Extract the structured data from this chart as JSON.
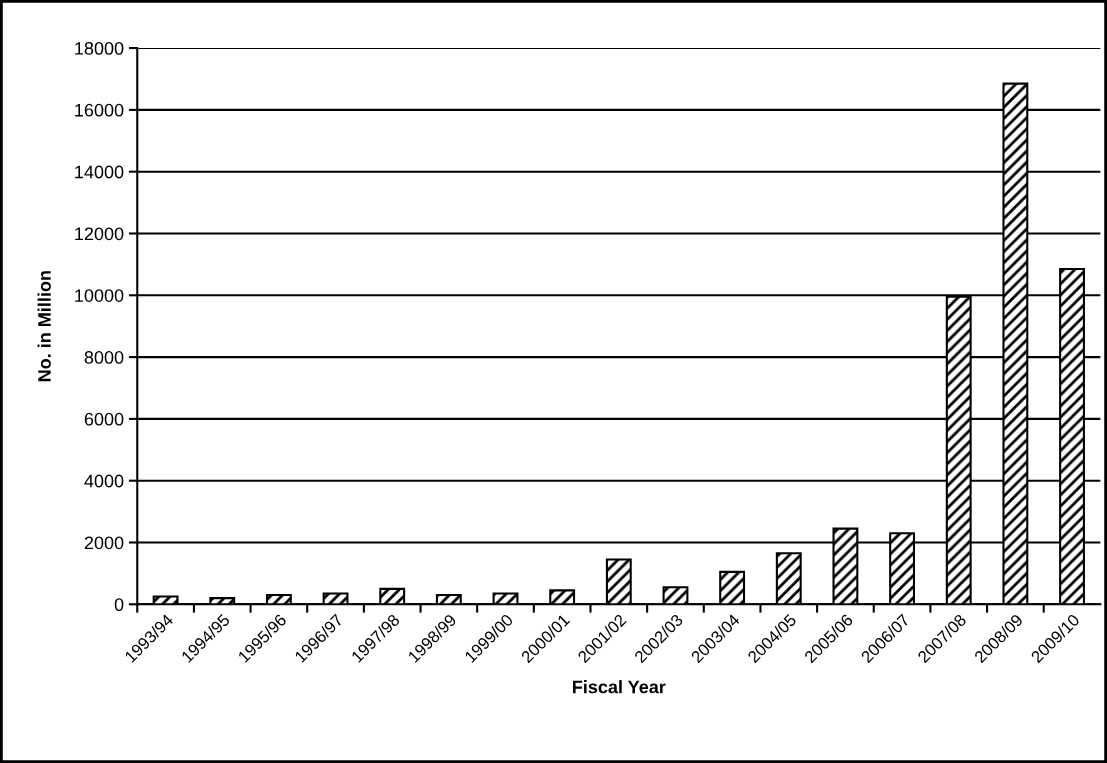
{
  "chart_data": {
    "type": "bar",
    "xlabel": "Fiscal Year",
    "ylabel": "No. in Million",
    "categories": [
      "1993/94",
      "1994/95",
      "1995/96",
      "1996/97",
      "1997/98",
      "1998/99",
      "1999/00",
      "2000/01",
      "2001/02",
      "2002/03",
      "2003/04",
      "2004/05",
      "2005/06",
      "2006/07",
      "2007/08",
      "2008/09",
      "2009/10"
    ],
    "values": [
      250,
      200,
      300,
      350,
      500,
      300,
      350,
      450,
      1450,
      550,
      1050,
      1650,
      2450,
      2300,
      9950,
      16850,
      10850
    ],
    "color": "#000000",
    "ylim": [
      0,
      18000
    ],
    "yticks": [
      0,
      2000,
      4000,
      6000,
      8000,
      10000,
      12000,
      14000,
      16000,
      18000
    ],
    "grid": "y",
    "legend": false
  }
}
